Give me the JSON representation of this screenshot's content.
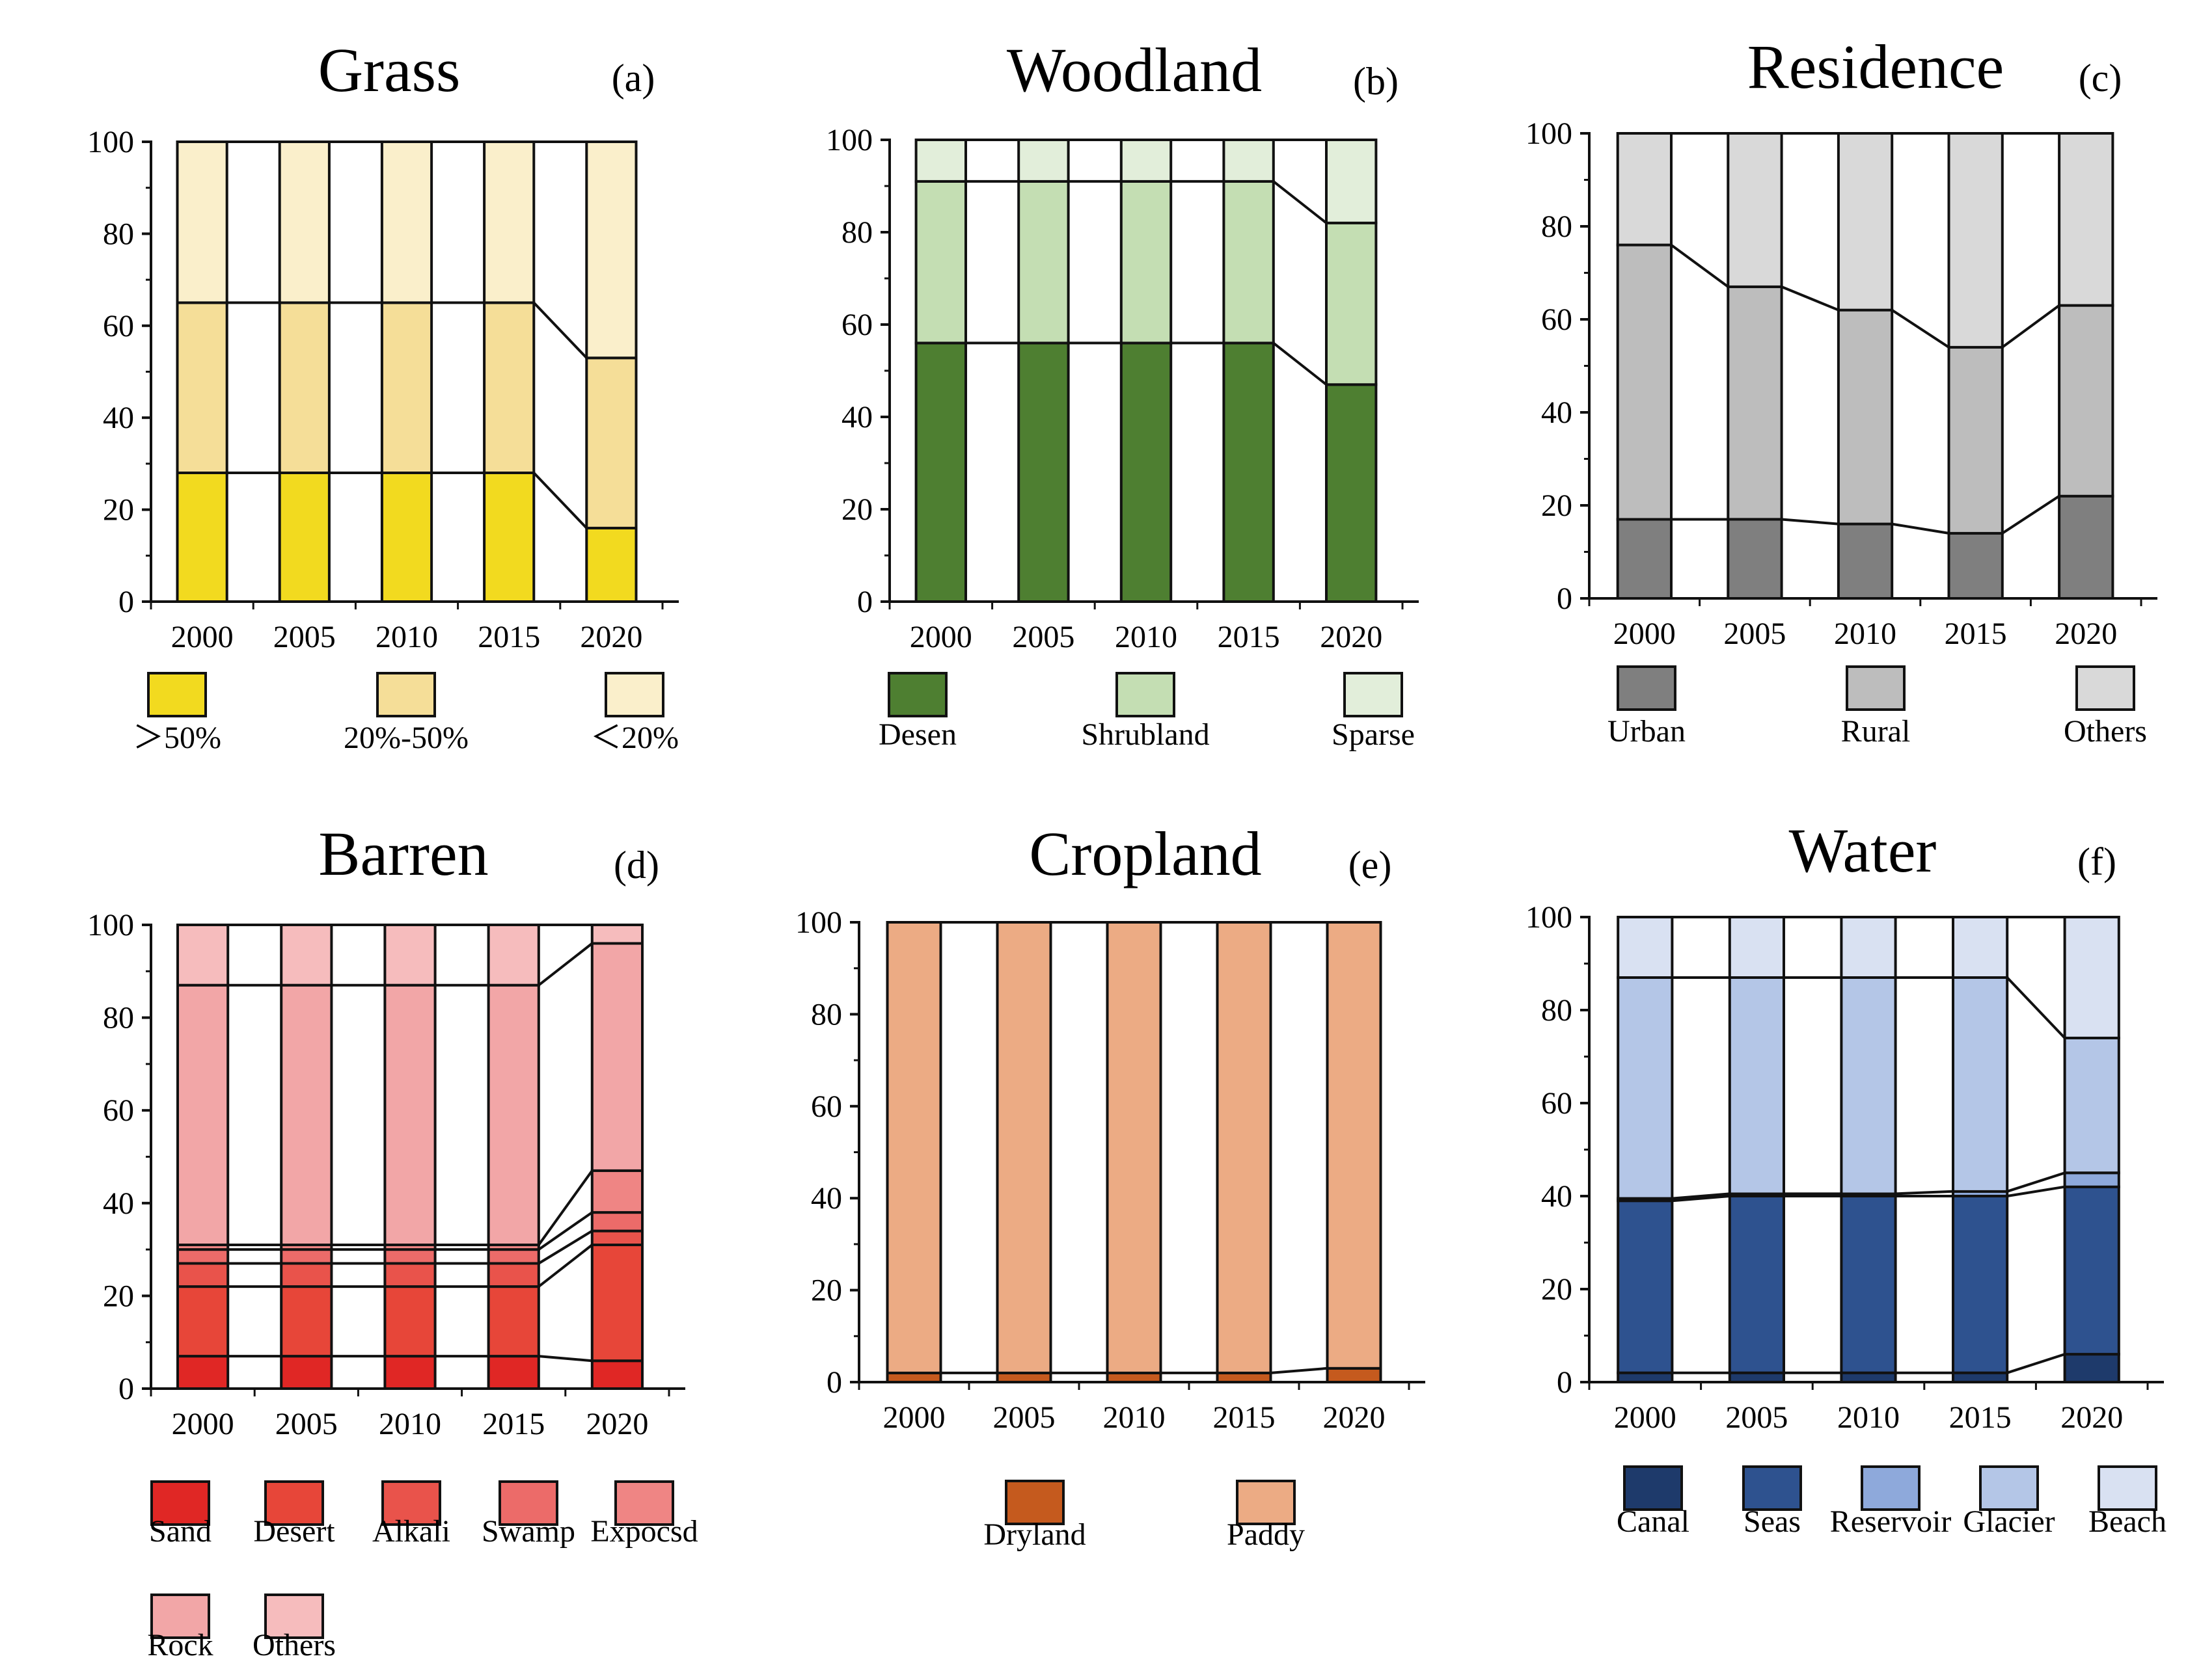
{
  "chart_data": [
    {
      "type": "bar",
      "stacked": true,
      "title": "Grass",
      "panel_label": "(a)",
      "categories": [
        "2000",
        "2005",
        "2010",
        "2015",
        "2020"
      ],
      "ylim": [
        0,
        100
      ],
      "yticks": [
        "0",
        "20",
        "40",
        "60",
        "80",
        "100"
      ],
      "series": [
        {
          "name": ">50%",
          "label": "＞50%",
          "color": "#F2DA1F",
          "values": [
            28,
            28,
            28,
            28,
            16
          ]
        },
        {
          "name": "20%-50%",
          "label": "20%-50%",
          "color": "#F5DE98",
          "values": [
            37,
            37,
            37,
            37,
            37
          ]
        },
        {
          "name": "<20%",
          "label": "＜20%",
          "color": "#FAEFCB",
          "values": [
            35,
            35,
            35,
            35,
            47
          ]
        }
      ]
    },
    {
      "type": "bar",
      "stacked": true,
      "title": "Woodland",
      "panel_label": "(b)",
      "categories": [
        "2000",
        "2005",
        "2010",
        "2015",
        "2020"
      ],
      "ylim": [
        0,
        100
      ],
      "yticks": [
        "0",
        "20",
        "40",
        "60",
        "80",
        "100"
      ],
      "series": [
        {
          "name": "Desen",
          "label": "Desen",
          "color": "#4E7F31",
          "values": [
            56,
            56,
            56,
            56,
            47
          ]
        },
        {
          "name": "Shrubland",
          "label": "Shrubland",
          "color": "#C4DEB3",
          "values": [
            35,
            35,
            35,
            35,
            35
          ]
        },
        {
          "name": "Sparse",
          "label": "Sparse",
          "color": "#E2EEDA",
          "values": [
            9,
            9,
            9,
            9,
            18
          ]
        }
      ]
    },
    {
      "type": "bar",
      "stacked": true,
      "title": "Residence",
      "panel_label": "(c)",
      "categories": [
        "2000",
        "2005",
        "2010",
        "2015",
        "2020"
      ],
      "ylim": [
        0,
        100
      ],
      "yticks": [
        "0",
        "20",
        "40",
        "60",
        "80",
        "100"
      ],
      "series": [
        {
          "name": "Urban",
          "label": "Urban",
          "color": "#7F7F7F",
          "values": [
            17,
            17,
            16,
            14,
            22
          ]
        },
        {
          "name": "Rural",
          "label": "Rural",
          "color": "#BDBDBD",
          "values": [
            59,
            50,
            46,
            40,
            41
          ]
        },
        {
          "name": "Others",
          "label": "Others",
          "color": "#D9D9D9",
          "values": [
            24,
            33,
            38,
            46,
            37
          ]
        }
      ]
    },
    {
      "type": "bar",
      "stacked": true,
      "title": "Barren",
      "panel_label": "(d)",
      "categories": [
        "2000",
        "2005",
        "2010",
        "2015",
        "2020"
      ],
      "ylim": [
        0,
        100
      ],
      "yticks": [
        "0",
        "20",
        "40",
        "60",
        "80",
        "100"
      ],
      "series": [
        {
          "name": "Sand",
          "label": "Sand",
          "color": "#E02725",
          "values": [
            7,
            7,
            7,
            7,
            6
          ]
        },
        {
          "name": "Desert",
          "label": "Desert",
          "color": "#E74639",
          "values": [
            15,
            15,
            15,
            15,
            25
          ]
        },
        {
          "name": "Alkali",
          "label": "Alkali",
          "color": "#E9534B",
          "values": [
            5,
            5,
            5,
            5,
            3
          ]
        },
        {
          "name": "Swamp",
          "label": "Swamp",
          "color": "#EC6B69",
          "values": [
            3,
            3,
            3,
            3,
            4
          ]
        },
        {
          "name": "Expocsd",
          "label": "Expocsd",
          "color": "#EF8584",
          "values": [
            1,
            1,
            1,
            1,
            9
          ]
        },
        {
          "name": "Rock",
          "label": "Rock",
          "color": "#F2A6A7",
          "values": [
            56,
            56,
            56,
            56,
            49
          ]
        },
        {
          "name": "Others",
          "label": "Others",
          "color": "#F6BCBD",
          "values": [
            13,
            13,
            13,
            13,
            4
          ]
        }
      ]
    },
    {
      "type": "bar",
      "stacked": true,
      "title": "Cropland",
      "panel_label": "(e)",
      "categories": [
        "2000",
        "2005",
        "2010",
        "2015",
        "2020"
      ],
      "ylim": [
        0,
        100
      ],
      "yticks": [
        "0",
        "20",
        "40",
        "60",
        "80",
        "100"
      ],
      "series": [
        {
          "name": "Dryland",
          "label": "Dryland",
          "color": "#C55A1E",
          "values": [
            2,
            2,
            2,
            2,
            3
          ]
        },
        {
          "name": "Paddy",
          "label": "Paddy",
          "color": "#ECAB84",
          "values": [
            98,
            98,
            98,
            98,
            97
          ]
        }
      ]
    },
    {
      "type": "bar",
      "stacked": true,
      "title": "Water",
      "panel_label": "(f)",
      "categories": [
        "2000",
        "2005",
        "2010",
        "2015",
        "2020"
      ],
      "ylim": [
        0,
        100
      ],
      "yticks": [
        "0",
        "20",
        "40",
        "60",
        "80",
        "100"
      ],
      "series": [
        {
          "name": "Canal",
          "label": "Canal",
          "color": "#1E3A6B",
          "values": [
            2,
            2,
            2,
            2,
            6
          ]
        },
        {
          "name": "Seas",
          "label": "Seas",
          "color": "#2E528F",
          "values": [
            37,
            38,
            38,
            38,
            36
          ]
        },
        {
          "name": "Reservoir",
          "label": "Reservoir",
          "color": "#8EA9DB",
          "values": [
            0.5,
            0.5,
            0.5,
            1,
            3
          ]
        },
        {
          "name": "Glacier",
          "label": "Glacier",
          "color": "#B4C6E7",
          "values": [
            47.5,
            46.5,
            46.5,
            46,
            29
          ]
        },
        {
          "name": "Beach",
          "label": "Beach",
          "color": "#D9E1F2",
          "values": [
            13,
            13,
            13,
            13,
            26
          ]
        }
      ]
    }
  ]
}
